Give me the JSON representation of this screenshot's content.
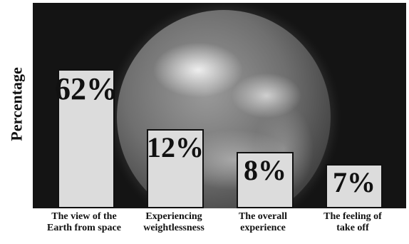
{
  "chart_data": {
    "type": "bar",
    "ylabel": "Percentage",
    "categories": [
      "The view of the\nEarth from space",
      "Experiencing\nweightlessness",
      "The overall\nexperience",
      "The feeling of\ntake off"
    ],
    "values": [
      62,
      12,
      8,
      7
    ],
    "data_labels": [
      "62%",
      "12%",
      "8%",
      "7%"
    ],
    "ylim": [
      0,
      100
    ],
    "grid": false,
    "bar_color": "#dcdcdc",
    "background": "Earth photograph"
  }
}
